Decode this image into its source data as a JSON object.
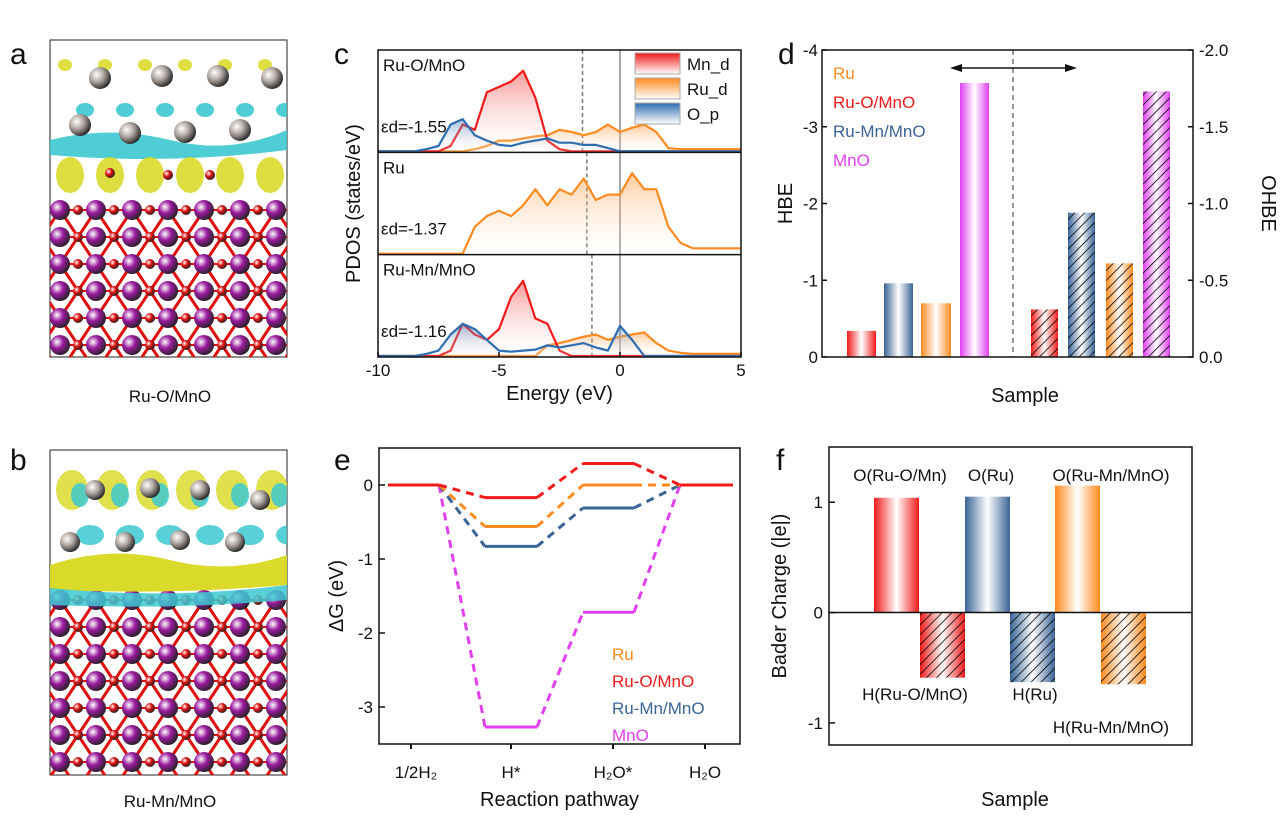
{
  "panels": {
    "a": {
      "label": "a",
      "caption": "Ru-O/MnO"
    },
    "b": {
      "label": "b",
      "caption": "Ru-Mn/MnO"
    },
    "c": {
      "label": "c"
    },
    "d": {
      "label": "d"
    },
    "e": {
      "label": "e"
    },
    "f": {
      "label": "f"
    }
  },
  "colors": {
    "Ru": "#ff8a1f",
    "Ru-O/MnO": "#f01a1a",
    "Ru-Mn/MnO": "#3a6496",
    "MnO": "#e040f0",
    "O_p": "#2e6db0",
    "isosurface_cyan": "#3cc8d0",
    "isosurface_yellow": "#d8d820",
    "Mn_atom": "#9a1a9e",
    "O_atom": "#e01010",
    "Ru_atom": "#b4aaa4"
  },
  "chart_data": [
    {
      "panel": "c",
      "type": "area",
      "xlabel": "Energy (eV)",
      "ylabel": "PDOS (states/eV)",
      "xlim": [
        -10,
        5
      ],
      "xticks": [
        "-10",
        "-5",
        "0",
        "5"
      ],
      "legend": [
        "Mn_d",
        "Ru_d",
        "O_p"
      ],
      "legend_position": "top-right",
      "energy": [
        -10,
        -9.5,
        -9,
        -8.5,
        -8,
        -7.5,
        -7,
        -6.5,
        -6,
        -5.5,
        -5,
        -4.5,
        -4,
        -3.5,
        -3,
        -2.5,
        -2,
        -1.5,
        -1,
        -0.5,
        0,
        0.5,
        1,
        1.5,
        2,
        2.5,
        3,
        3.5,
        4,
        4.5,
        5
      ],
      "subplots": [
        {
          "title": "Ru-O/MnO",
          "ed_label": "εd=-1.55",
          "ed": -1.55,
          "series": [
            {
              "name": "Mn_d",
              "values": [
                0,
                0,
                0,
                0,
                0,
                0,
                0.05,
                0.25,
                0.2,
                0.55,
                0.6,
                0.65,
                0.75,
                0.5,
                0.1,
                0.02,
                0,
                0,
                0,
                0,
                0,
                0,
                0,
                0,
                0,
                0,
                0,
                0,
                0,
                0,
                0
              ]
            },
            {
              "name": "Ru_d",
              "values": [
                0,
                0,
                0,
                0,
                0,
                0,
                0,
                0,
                0.02,
                0.05,
                0.1,
                0.1,
                0.12,
                0.14,
                0.15,
                0.2,
                0.18,
                0.15,
                0.18,
                0.25,
                0.18,
                0.22,
                0.25,
                0.18,
                0.03,
                0.02,
                0.02,
                0.02,
                0.02,
                0.02,
                0.02
              ]
            },
            {
              "name": "O_p",
              "values": [
                0,
                0,
                0,
                0,
                0.02,
                0.05,
                0.25,
                0.3,
                0.15,
                0.1,
                0.06,
                0.05,
                0.08,
                0.1,
                0.12,
                0.08,
                0.08,
                0.06,
                0.06,
                0.03,
                0,
                0,
                0,
                0,
                0,
                0,
                0,
                0,
                0,
                0,
                0
              ]
            }
          ]
        },
        {
          "title": "Ru",
          "ed_label": "εd=-1.37",
          "ed": -1.37,
          "series": [
            {
              "name": "Ru_d",
              "values": [
                0,
                0,
                0,
                0,
                0,
                0,
                0,
                0,
                0.25,
                0.35,
                0.4,
                0.35,
                0.45,
                0.6,
                0.45,
                0.6,
                0.55,
                0.7,
                0.5,
                0.55,
                0.55,
                0.75,
                0.6,
                0.6,
                0.25,
                0.1,
                0.05,
                0.05,
                0.05,
                0.05,
                0.05
              ]
            }
          ]
        },
        {
          "title": "Ru-Mn/MnO",
          "ed_label": "εd=-1.16",
          "ed": -1.16,
          "series": [
            {
              "name": "Mn_d",
              "values": [
                0,
                0,
                0,
                0,
                0,
                0,
                0.05,
                0.3,
                0.2,
                0.15,
                0.25,
                0.55,
                0.7,
                0.35,
                0.3,
                0.05,
                0,
                0,
                0,
                0,
                0,
                0,
                0,
                0,
                0,
                0,
                0,
                0,
                0,
                0,
                0
              ]
            },
            {
              "name": "Ru_d",
              "values": [
                0,
                0,
                0,
                0,
                0,
                0,
                0,
                0,
                0,
                0,
                0,
                0,
                0,
                0,
                0.1,
                0.12,
                0.15,
                0.18,
                0.2,
                0.15,
                0.18,
                0.2,
                0.22,
                0.12,
                0.05,
                0.03,
                0.02,
                0.02,
                0.02,
                0.02,
                0.02
              ]
            },
            {
              "name": "O_p",
              "values": [
                0,
                0,
                0,
                0,
                0.02,
                0.05,
                0.2,
                0.3,
                0.25,
                0.15,
                0.05,
                0.04,
                0.05,
                0.06,
                0.1,
                0.08,
                0.1,
                0.12,
                0.08,
                0.05,
                0.28,
                0.15,
                0,
                0,
                0,
                0,
                0,
                0,
                0,
                0,
                0
              ]
            }
          ]
        }
      ]
    },
    {
      "panel": "d",
      "type": "bar",
      "xlabel": "Sample",
      "ylabel": "HBE",
      "ylabel_right": "OHBE",
      "ylim": [
        0,
        -4
      ],
      "ylim_right": [
        0,
        -2.0
      ],
      "yticks": [
        "0",
        "-1",
        "-2",
        "-3",
        "-4"
      ],
      "yticks_right": [
        "0.0",
        "-0.5",
        "-1.0",
        "-1.5",
        "-2.0"
      ],
      "legend": [
        "Ru",
        "Ru-O/MnO",
        "Ru-Mn/MnO",
        "MnO"
      ],
      "legend_position": "top-left",
      "series": [
        {
          "name": "HBE",
          "axis": "left",
          "categories": [
            "Ru-O/MnO",
            "Ru-Mn/MnO",
            "Ru",
            "MnO"
          ],
          "values": [
            -0.34,
            -0.96,
            -0.7,
            -3.57
          ]
        },
        {
          "name": "OHBE",
          "axis": "right",
          "categories": [
            "Ru-O/MnO",
            "Ru-Mn/MnO",
            "Ru",
            "MnO"
          ],
          "values": [
            -0.31,
            -0.94,
            -0.61,
            -1.73
          ]
        }
      ]
    },
    {
      "panel": "e",
      "type": "line",
      "xlabel": "Reaction pathway",
      "ylabel": "ΔG (eV)",
      "ylim": [
        -3.5,
        0.5
      ],
      "yticks": [
        "0",
        "-1",
        "-2",
        "-3"
      ],
      "categories": [
        "1/2H₂",
        "H*",
        "H₂O*",
        "H₂O"
      ],
      "legend_position": "bottom-right",
      "series": [
        {
          "name": "Ru",
          "values": [
            0,
            -0.56,
            0.0,
            0
          ]
        },
        {
          "name": "Ru-O/MnO",
          "values": [
            0,
            -0.17,
            0.29,
            0
          ]
        },
        {
          "name": "Ru-Mn/MnO",
          "values": [
            0,
            -0.83,
            -0.31,
            0
          ]
        },
        {
          "name": "MnO",
          "values": [
            0,
            -3.27,
            -1.72,
            0
          ]
        }
      ]
    },
    {
      "panel": "f",
      "type": "bar",
      "xlabel": "Sample",
      "ylabel": "Bader Charge (|e|)",
      "ylim": [
        -1.2,
        1.5
      ],
      "yticks": [
        "1",
        "0",
        "-1"
      ],
      "categories": [
        "O(Ru-O/Mn)",
        "H(Ru-O/MnO)",
        "O(Ru)",
        "H(Ru)",
        "O(Ru-Mn/MnO)",
        "H(Ru-Mn/MnO)"
      ],
      "values": [
        1.04,
        -0.59,
        1.05,
        -0.63,
        1.15,
        -0.65
      ]
    }
  ]
}
